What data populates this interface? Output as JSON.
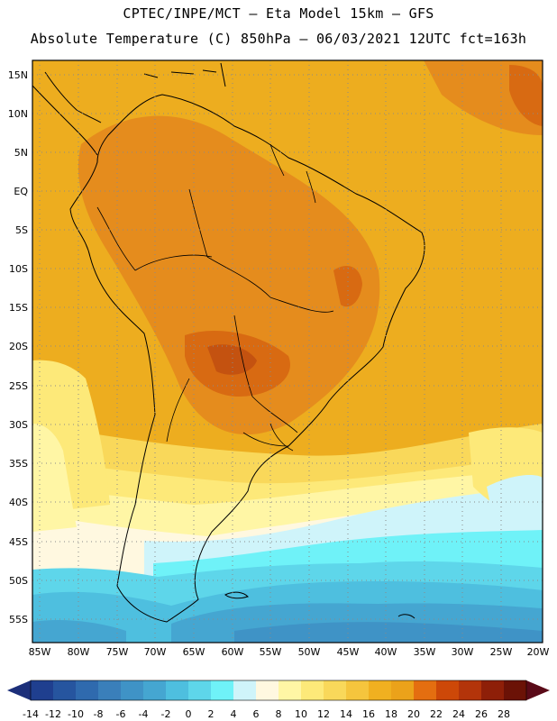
{
  "title_line1": "CPTEC/INPE/MCT –  Eta Model 15km – GFS",
  "title_line2": "Absolute Temperature (C) 850hPa – 06/03/2021 12UTC fct=163h",
  "lat_labels": [
    "15N",
    "10N",
    "5N",
    "EQ",
    "5S",
    "10S",
    "15S",
    "20S",
    "25S",
    "30S",
    "35S",
    "40S",
    "45S",
    "50S",
    "55S"
  ],
  "lon_labels": [
    "85W",
    "80W",
    "75W",
    "70W",
    "65W",
    "60W",
    "55W",
    "50W",
    "45W",
    "40W",
    "35W",
    "30W",
    "25W",
    "20W"
  ],
  "colorbar": {
    "labels": [
      "-14",
      "-12",
      "-10",
      "-8",
      "-6",
      "-4",
      "-2",
      "0",
      "2",
      "4",
      "6",
      "8",
      "10",
      "12",
      "14",
      "16",
      "18",
      "20",
      "22",
      "24",
      "26",
      "28"
    ],
    "colors": [
      "#1f3f8f",
      "#26559f",
      "#2f6aae",
      "#3a7fba",
      "#3f93c6",
      "#45a6d1",
      "#4ebfdf",
      "#5ed6ea",
      "#6ff2f8",
      "#cff4fa",
      "#fff8e0",
      "#fff6a5",
      "#fde979",
      "#f9d85a",
      "#f5c53d",
      "#f0b020",
      "#eba21a",
      "#e46e10",
      "#cd4808",
      "#b3340a",
      "#8e1f08",
      "#6b1206"
    ],
    "under_color": "#1c2f7a",
    "over_color": "#5a0a18"
  },
  "field_colors": {
    "t16": "#f3c33c",
    "t18": "#edad1f",
    "t20": "#e58c1d",
    "t22": "#d86a12",
    "t24": "#c45210",
    "t14": "#f9d85a",
    "t12": "#fde979",
    "t10": "#fff6a5",
    "t8": "#fff8e0",
    "t6": "#cff4fa",
    "t4": "#6ff2f8",
    "t2": "#5ed6ea",
    "t0": "#4ebfdf",
    "tm2": "#45a6d1",
    "tm4": "#3f93c6",
    "tm6": "#3a7fba"
  }
}
